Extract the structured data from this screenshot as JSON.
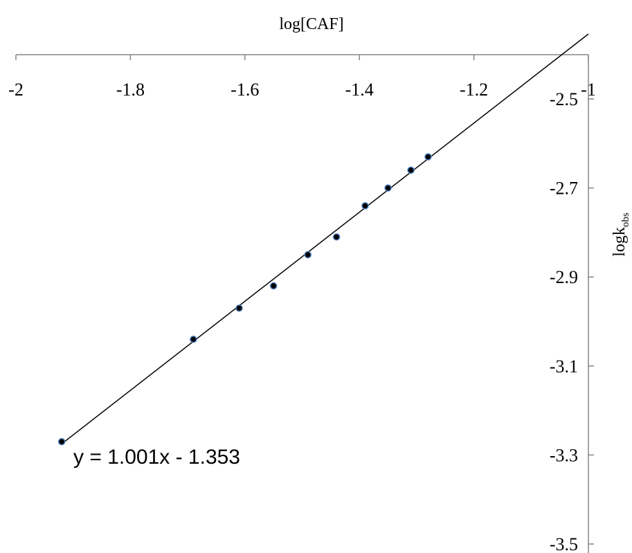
{
  "chart_data": {
    "type": "scatter",
    "xlabel": "log[CAF]",
    "ylabel": {
      "base": "logk",
      "subscript": "obs"
    },
    "x_axis_position": "top",
    "y_axis_position": "right",
    "xlim": [
      -2,
      -1
    ],
    "ylim": [
      -3.5,
      -2.4
    ],
    "x_ticks": [
      -2,
      -1.8,
      -1.6,
      -1.4,
      -1.2,
      -1
    ],
    "x_tick_labels": [
      "-2",
      "-1.8",
      "-1.6",
      "-1.4",
      "-1.2",
      "-1"
    ],
    "y_ticks": [
      -2.5,
      -2.7,
      -2.9,
      -3.1,
      -3.3,
      -3.5
    ],
    "y_tick_labels": [
      "-2.5",
      "-2.7",
      "-2.9",
      "-3.1",
      "-3.3",
      "-3.5"
    ],
    "grid": false,
    "series": [
      {
        "x": [
          -1.92,
          -1.69,
          -1.61,
          -1.55,
          -1.49,
          -1.44,
          -1.39,
          -1.35,
          -1.31,
          -1.28
        ],
        "y": [
          -3.27,
          -3.04,
          -2.97,
          -2.92,
          -2.85,
          -2.81,
          -2.74,
          -2.7,
          -2.66,
          -2.63
        ]
      }
    ],
    "trendline": {
      "type": "linear",
      "slope": 1.001,
      "intercept": -1.353,
      "equation": "y = 1.001x - 1.353"
    },
    "colors": {
      "marker_fill": "#000000",
      "marker_edge": "#4f81bd",
      "line": "#000000",
      "axis": "#868686"
    }
  }
}
